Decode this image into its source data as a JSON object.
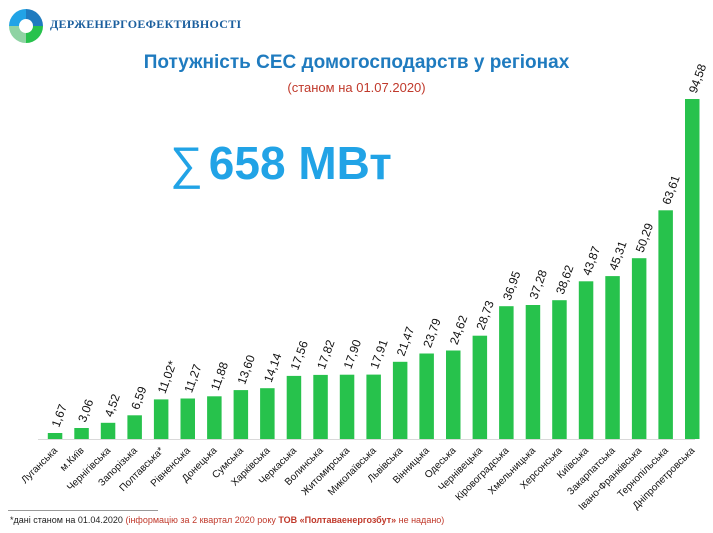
{
  "header": {
    "org_name": "ДЕРЖЕНЕРГОЕФЕКТИВНОСТІ",
    "logo_icon": "logo-sphere-icon"
  },
  "total": {
    "symbol": "∑",
    "value": "658 МВт"
  },
  "footnote": {
    "prefix": "*дані станом на 01.04.2020 ",
    "note_start": "(інформацію за 2 квартал 2020 року ",
    "company": "ТОВ «Полтаваенергозбут»",
    "note_end": " не надано)"
  },
  "colors": {
    "bar": "#27c24c",
    "title": "#1f7bbf",
    "subtitle": "#c0392b",
    "total": "#21a3e6"
  },
  "chart_data": {
    "type": "bar",
    "title": "Потужність СЕС домогосподарств у регіонах",
    "subtitle": "(станом на 01.07.2020)",
    "xlabel": "",
    "ylabel": "",
    "ylim": [
      0,
      100
    ],
    "grid": false,
    "categories": [
      "Луганська",
      "м.Київ",
      "Чернігівська",
      "Запорізька",
      "Полтавська*",
      "Рівненська",
      "Донецька",
      "Сумська",
      "Харківська",
      "Черкаська",
      "Волинська",
      "Житомирська",
      "Миколаївська",
      "Львівська",
      "Вінницька",
      "Одеська",
      "Чернівецька",
      "Кіровоградська",
      "Хмельницька",
      "Херсонська",
      "Київська",
      "Закарпатська",
      "Івано-Франківська",
      "Тернопільська",
      "Дніпропетровська"
    ],
    "values": [
      1.67,
      3.06,
      4.52,
      6.59,
      11.02,
      11.27,
      11.88,
      13.6,
      14.14,
      17.56,
      17.82,
      17.9,
      17.91,
      21.47,
      23.79,
      24.62,
      28.73,
      36.95,
      37.28,
      38.62,
      43.87,
      45.31,
      50.29,
      63.61,
      94.58
    ],
    "value_labels": [
      "1,67",
      "3,06",
      "4,52",
      "6,59",
      "11,02*",
      "11,27",
      "11,88",
      "13,60",
      "14,14",
      "17,56",
      "17,82",
      "17,90",
      "17,91",
      "21,47",
      "23,79",
      "24,62",
      "28,73",
      "36,95",
      "37,28",
      "38,62",
      "43,87",
      "45,31",
      "50,29",
      "63,61",
      "94,58"
    ]
  }
}
